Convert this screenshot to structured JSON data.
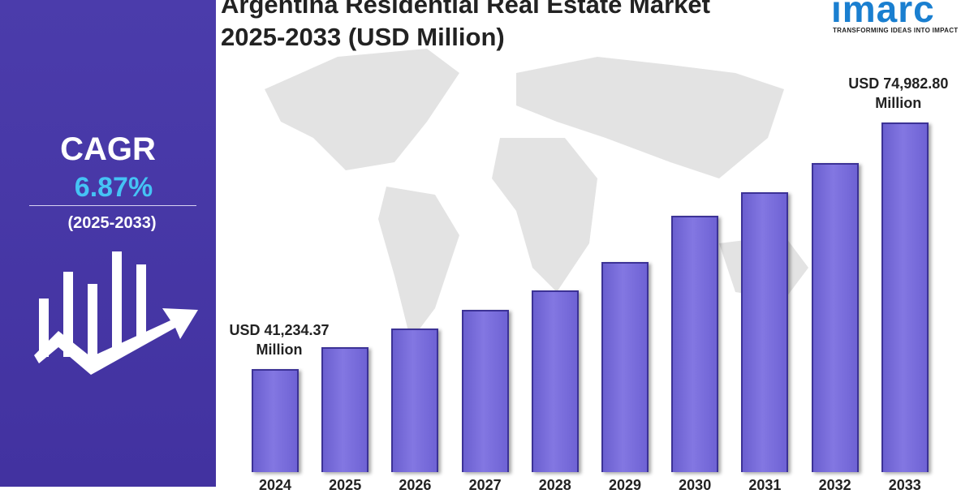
{
  "chart_data": {
    "type": "bar",
    "title_lines": [
      "Argentina Residential Real Estate Market",
      "2025-2033 (USD Million)"
    ],
    "categories": [
      "2024",
      "2025",
      "2026",
      "2027",
      "2028",
      "2029",
      "2030",
      "2031",
      "2032",
      "2033"
    ],
    "values": [
      41234.37,
      44230,
      46782,
      49335,
      51999,
      55884,
      62211,
      65430,
      69426,
      74982.8
    ],
    "value_labels": [
      "USD 41,234.37 Million",
      null,
      null,
      null,
      null,
      null,
      null,
      null,
      null,
      "USD 74,982.80 Million"
    ],
    "color": "#7b6fdc"
  },
  "cagr": {
    "label": "CAGR",
    "value": "6.87%",
    "period": "(2025-2033)"
  },
  "logo": {
    "name": "imarc",
    "tagline": "TRANSFORMING IDEAS INTO IMPACT"
  }
}
